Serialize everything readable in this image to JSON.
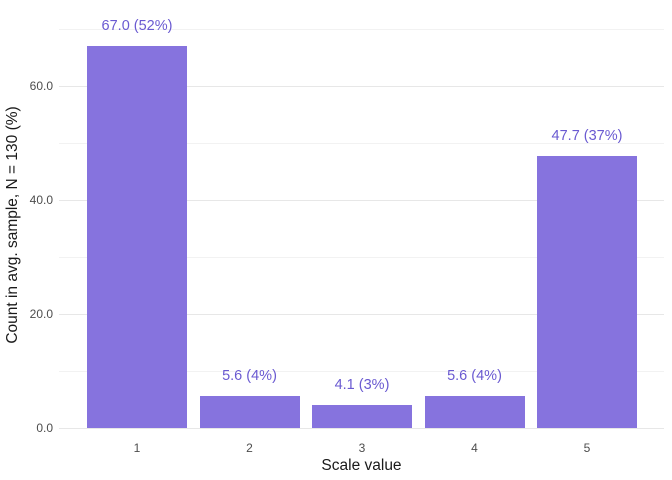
{
  "chart_data": {
    "type": "bar",
    "title": "",
    "xlabel": "Scale value",
    "ylabel": "Count in avg. sample, N = 130 (%)",
    "categories": [
      "1",
      "2",
      "3",
      "4",
      "5"
    ],
    "values": [
      67.0,
      5.6,
      4.1,
      5.6,
      47.7
    ],
    "bar_labels": [
      "67.0 (52%)",
      "5.6 (4%)",
      "4.1 (3%)",
      "5.6 (4%)",
      "47.7 (37%)"
    ],
    "percentages": [
      52,
      4,
      3,
      4,
      37
    ],
    "sample_size": 130,
    "ylim": [
      0,
      70
    ],
    "yticks": {
      "major": [
        0,
        20,
        40,
        60
      ],
      "major_labels": [
        "0.0",
        "20.0",
        "40.0",
        "60.0"
      ],
      "minor": [
        10,
        30,
        50,
        70
      ]
    },
    "grid": "horizontal, major and minor, light gray, white background",
    "legend": "none",
    "colors": {
      "bar": "#8673de",
      "bar_label": "#6a5ad1",
      "tick_label": "#4d4d4d",
      "axis_title": "#1a1a1a",
      "grid_major": "#e7e7e7",
      "grid_minor": "#f2f2f2",
      "background": "#ffffff"
    }
  }
}
